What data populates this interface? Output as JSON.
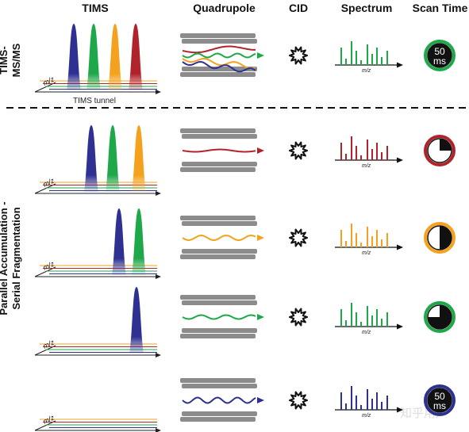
{
  "headers": {
    "tims": "TIMS",
    "quadrupole": "Quadrupole",
    "cid": "CID",
    "spectrum": "Spectrum",
    "scan_time": "Scan Time"
  },
  "side_labels": {
    "top_line1": "TIMS-",
    "top_line2": "MS/MS",
    "bottom_line1": "Parallel Accumulation -",
    "bottom_line2": "Serial Fragmentation"
  },
  "axis_label": "m/z",
  "tunnel_label": "TIMS tunnel",
  "scan_time_label_line1": "50",
  "scan_time_label_line2": "ms",
  "watermark": "知乎用户",
  "colors": {
    "blue": "#2e3192",
    "green": "#1fa84a",
    "orange": "#f4a21e",
    "red": "#b0232a",
    "grey_bar": "#8c8c8c",
    "dark": "#111111"
  },
  "rows": [
    {
      "name": "tims-msms",
      "peaks": [
        "blue",
        "green",
        "orange",
        "red"
      ],
      "beam": "all",
      "spectrum_color": "green",
      "scan_fill": 1.0,
      "scan_ring": "green"
    },
    {
      "name": "pasef-1",
      "peaks": [
        "blue",
        "green",
        "orange"
      ],
      "beam": "red",
      "spectrum_color": "red",
      "scan_fill": 0.25,
      "scan_ring": "red"
    },
    {
      "name": "pasef-2",
      "peaks": [
        "blue",
        "green"
      ],
      "beam": "orange",
      "spectrum_color": "orange",
      "scan_fill": 0.5,
      "scan_ring": "orange"
    },
    {
      "name": "pasef-3",
      "peaks": [
        "blue"
      ],
      "beam": "green",
      "spectrum_color": "green",
      "scan_fill": 0.75,
      "scan_ring": "green"
    },
    {
      "name": "pasef-4",
      "peaks": [],
      "beam": "blue",
      "spectrum_color": "blue",
      "scan_fill": 1.0,
      "scan_ring": "blue"
    }
  ]
}
